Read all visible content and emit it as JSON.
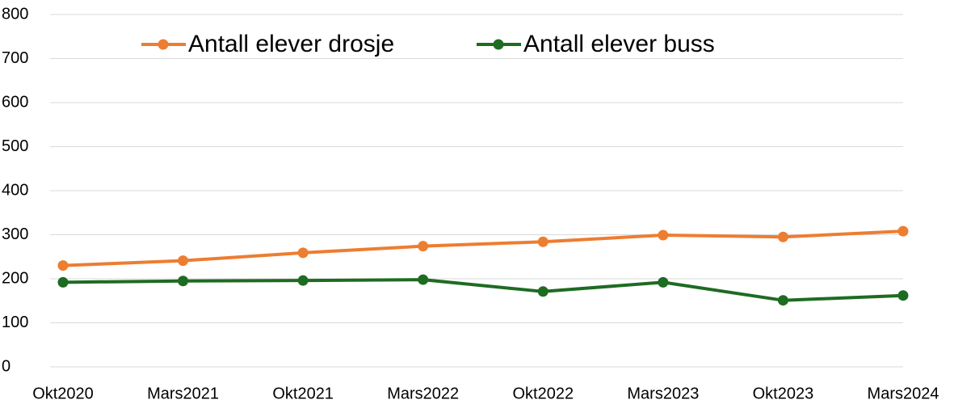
{
  "chart_data": {
    "type": "line",
    "categories": [
      "Okt2020",
      "Mars2021",
      "Okt2021",
      "Mars2022",
      "Okt2022",
      "Mars2023",
      "Okt2023",
      "Mars2024"
    ],
    "series": [
      {
        "name": "Antall elever drosje",
        "color": "#ed7d31",
        "values": [
          230,
          241,
          259,
          274,
          284,
          299,
          295,
          308
        ]
      },
      {
        "name": "Antall elever buss",
        "color": "#1e6b22",
        "values": [
          192,
          195,
          196,
          198,
          171,
          192,
          151,
          162
        ]
      }
    ],
    "ylim": [
      0,
      800
    ],
    "yticks": [
      0,
      100,
      200,
      300,
      400,
      500,
      600,
      700,
      800
    ],
    "grid": true,
    "legend": "top"
  }
}
